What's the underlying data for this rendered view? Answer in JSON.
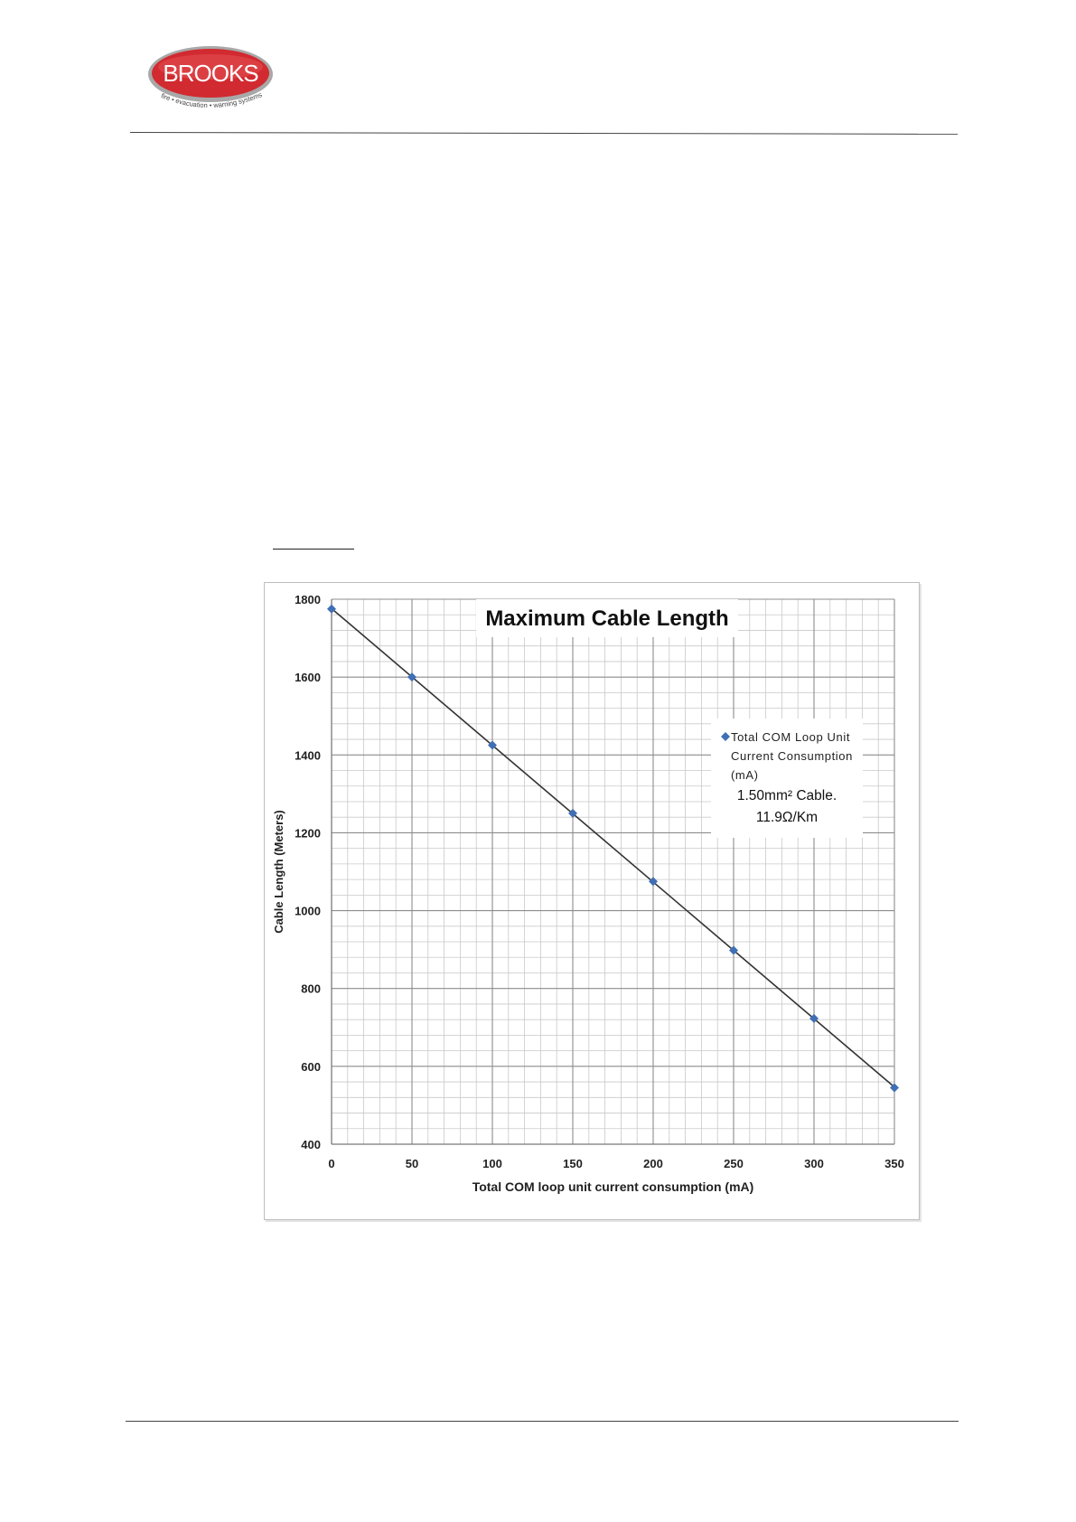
{
  "header": {
    "logo": {
      "brand": "BROOKS",
      "tagline": "fire • evacuation • warning systems",
      "colors": {
        "oval": "#c8202a",
        "ring": "#9a9a9a",
        "text": "#ffffff"
      }
    }
  },
  "chart_data": {
    "type": "scatter",
    "title": "Maximum Cable Length",
    "xlabel": "Total COM loop unit current consumption (mA)",
    "ylabel": "Cable Length (Meters)",
    "xlim": [
      0,
      350
    ],
    "ylim": [
      400,
      1800
    ],
    "x_ticks": [
      "0",
      "50",
      "100",
      "150",
      "200",
      "250",
      "300",
      "350"
    ],
    "y_ticks": [
      "400",
      "600",
      "800",
      "1000",
      "1200",
      "1400",
      "1600",
      "1800"
    ],
    "grid": true,
    "trendline": "linear",
    "legend_position": "right",
    "series": [
      {
        "name": "Total COM Loop Unit Current Consumption (mA)",
        "color": "#3f6fb5",
        "marker": "diamond",
        "x": [
          0,
          50,
          100,
          150,
          200,
          250,
          300,
          350
        ],
        "y": [
          1775,
          1600,
          1425,
          1250,
          1075,
          898,
          723,
          545
        ]
      }
    ],
    "annotation": [
      "1.50mm² Cable.",
      "11.9Ω/Km"
    ]
  }
}
